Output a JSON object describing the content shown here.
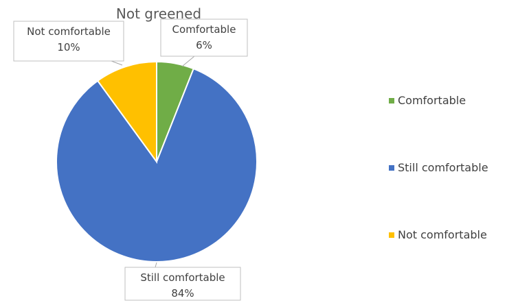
{
  "chart_data": {
    "type": "pie",
    "title": "Not greened",
    "categories": [
      "Comfortable",
      "Still comfortable",
      "Not comfortable"
    ],
    "values": [
      6,
      84,
      10
    ],
    "value_labels": [
      "6%",
      "84%",
      "10%"
    ],
    "colors": [
      "#70AD47",
      "#4472C4",
      "#FFC000"
    ],
    "legend": {
      "position": "right",
      "entries": [
        "Comfortable",
        "Still comfortable",
        "Not comfortable"
      ]
    },
    "slice_border_color": "#FFFFFF"
  }
}
